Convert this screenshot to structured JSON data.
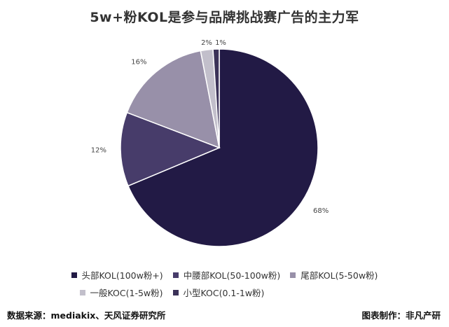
{
  "chart_data": {
    "type": "pie",
    "title": "5w+粉KOL是参与品牌挑战赛广告的主力军",
    "series": [
      {
        "name": "头部KOL(100w粉+)",
        "value": 68,
        "label": "68%",
        "color": "#221a45"
      },
      {
        "name": "中腰部KOL(50-100w粉)",
        "value": 12,
        "label": "12%",
        "color": "#473c6a"
      },
      {
        "name": "尾部KOL(5-50w粉)",
        "value": 16,
        "label": "16%",
        "color": "#9890a9"
      },
      {
        "name": "一般KOC(1-5w粉)",
        "value": 2,
        "label": "2%",
        "color": "#c2bfcb"
      },
      {
        "name": "小型KOC(0.1-1w粉)",
        "value": 1,
        "label": "1%",
        "color": "#3b3258"
      }
    ],
    "legend_position": "bottom"
  },
  "footer": {
    "source": "数据来源：mediakix、天风证券研究所",
    "credit": "图表制作：非凡产研"
  }
}
